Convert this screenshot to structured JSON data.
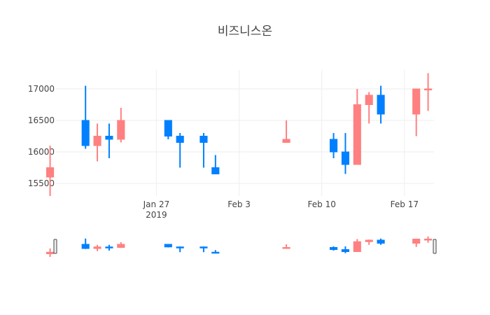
{
  "chart_data": {
    "type": "candlestick",
    "title": "비즈니스온",
    "xlabel": "",
    "ylabel": "",
    "grid": true,
    "rangeslider": true,
    "colors": {
      "increasing": "#ff8080",
      "decreasing": "#0080ff"
    },
    "ylim": [
      15300,
      17300
    ],
    "y_ticks": [
      15500,
      16000,
      16500,
      17000
    ],
    "y_tick_labels": [
      "15500",
      "16000",
      "16500",
      "17000"
    ],
    "x_range": [
      "2019-01-18T12:00",
      "2019-02-19T12:00"
    ],
    "x_ticks": [
      {
        "date": "2019-01-27",
        "label": "Jan 27",
        "sublabel": "2019"
      },
      {
        "date": "2019-02-03",
        "label": "Feb 3",
        "sublabel": ""
      },
      {
        "date": "2019-02-10",
        "label": "Feb 10",
        "sublabel": ""
      },
      {
        "date": "2019-02-17",
        "label": "Feb 17",
        "sublabel": ""
      }
    ],
    "candles": [
      {
        "date": "2019-01-18",
        "open": 15600,
        "high": 16100,
        "low": 15300,
        "close": 15750
      },
      {
        "date": "2019-01-21",
        "open": 16500,
        "high": 17050,
        "low": 16050,
        "close": 16100
      },
      {
        "date": "2019-01-22",
        "open": 16100,
        "high": 16450,
        "low": 15850,
        "close": 16250
      },
      {
        "date": "2019-01-23",
        "open": 16250,
        "high": 16450,
        "low": 15900,
        "close": 16200
      },
      {
        "date": "2019-01-24",
        "open": 16200,
        "high": 16700,
        "low": 16150,
        "close": 16500
      },
      {
        "date": "2019-01-28",
        "open": 16500,
        "high": 16500,
        "low": 16200,
        "close": 16250
      },
      {
        "date": "2019-01-29",
        "open": 16250,
        "high": 16300,
        "low": 15750,
        "close": 16150
      },
      {
        "date": "2019-01-31",
        "open": 16250,
        "high": 16300,
        "low": 15750,
        "close": 16150
      },
      {
        "date": "2019-02-01",
        "open": 15750,
        "high": 15950,
        "low": 15650,
        "close": 15650
      },
      {
        "date": "2019-02-07",
        "open": 16150,
        "high": 16500,
        "low": 16150,
        "close": 16200
      },
      {
        "date": "2019-02-11",
        "open": 16200,
        "high": 16300,
        "low": 15900,
        "close": 16000
      },
      {
        "date": "2019-02-12",
        "open": 16000,
        "high": 16300,
        "low": 15650,
        "close": 15800
      },
      {
        "date": "2019-02-13",
        "open": 15800,
        "high": 17000,
        "low": 15800,
        "close": 16750
      },
      {
        "date": "2019-02-14",
        "open": 16750,
        "high": 16950,
        "low": 16450,
        "close": 16900
      },
      {
        "date": "2019-02-15",
        "open": 16900,
        "high": 17050,
        "low": 16450,
        "close": 16600
      },
      {
        "date": "2019-02-18",
        "open": 16600,
        "high": 17000,
        "low": 16250,
        "close": 17000
      },
      {
        "date": "2019-02-19",
        "open": 17000,
        "high": 17250,
        "low": 16650,
        "close": 17000
      }
    ]
  }
}
